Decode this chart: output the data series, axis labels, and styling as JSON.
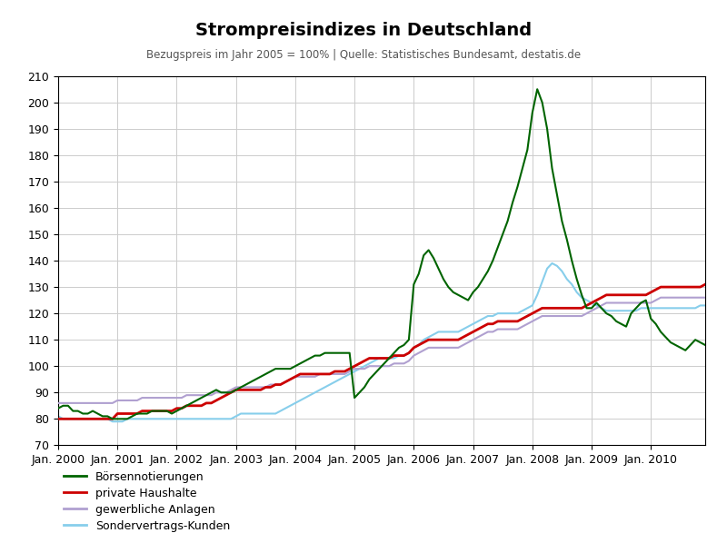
{
  "title": "Strompreisindizes in Deutschland",
  "subtitle": "Bezugspreis im Jahr 2005 = 100% | Quelle: Statistisches Bundesamt, destatis.de",
  "ylim": [
    70,
    210
  ],
  "yticks": [
    70,
    80,
    90,
    100,
    110,
    120,
    130,
    140,
    150,
    160,
    170,
    180,
    190,
    200,
    210
  ],
  "colors": {
    "boerse": "#006400",
    "haushalte": "#cc0000",
    "gewerbe": "#b0a0d0",
    "sonder": "#87ceeb"
  },
  "legend_labels": [
    "Börsennotierungen",
    "private Haushalte",
    "gewerbliche Anlagen",
    "Sondervertrags-Kunden"
  ],
  "background": "#ffffff",
  "grid_color": "#cccccc",
  "x_tick_labels": [
    "Jan. 2000",
    "Jan. 2001",
    "Jan. 2002",
    "Jan. 2003",
    "Jan. 2004",
    "Jan. 2005",
    "Jan. 2006",
    "Jan. 2007",
    "Jan. 2008",
    "Jan. 2009",
    "Jan. 2010"
  ],
  "x_tick_positions": [
    0,
    12,
    24,
    36,
    48,
    60,
    72,
    84,
    96,
    108,
    120
  ],
  "boerse": [
    84,
    85,
    85,
    83,
    83,
    82,
    82,
    83,
    82,
    81,
    81,
    80,
    80,
    80,
    80,
    81,
    82,
    82,
    82,
    83,
    83,
    83,
    83,
    82,
    83,
    84,
    85,
    86,
    87,
    88,
    89,
    90,
    91,
    90,
    90,
    90,
    91,
    92,
    93,
    94,
    95,
    96,
    97,
    98,
    99,
    99,
    99,
    99,
    100,
    101,
    102,
    103,
    104,
    104,
    105,
    105,
    105,
    105,
    105,
    105,
    88,
    90,
    92,
    95,
    97,
    99,
    101,
    103,
    105,
    107,
    108,
    110,
    131,
    135,
    142,
    144,
    141,
    137,
    133,
    130,
    128,
    127,
    126,
    125,
    128,
    130,
    133,
    136,
    140,
    145,
    150,
    155,
    162,
    168,
    175,
    182,
    196,
    205,
    200,
    190,
    175,
    165,
    155,
    148,
    140,
    133,
    127,
    122,
    122,
    124,
    122,
    120,
    119,
    117,
    116,
    115,
    120,
    122,
    124,
    125,
    118,
    116,
    113,
    111,
    109,
    108,
    107,
    106,
    108,
    110,
    109,
    108
  ],
  "haushalte": [
    80,
    80,
    80,
    80,
    80,
    80,
    80,
    80,
    80,
    80,
    80,
    80,
    82,
    82,
    82,
    82,
    82,
    83,
    83,
    83,
    83,
    83,
    83,
    83,
    84,
    84,
    85,
    85,
    85,
    85,
    86,
    86,
    87,
    88,
    89,
    90,
    91,
    91,
    91,
    91,
    91,
    91,
    92,
    92,
    93,
    93,
    94,
    95,
    96,
    97,
    97,
    97,
    97,
    97,
    97,
    97,
    98,
    98,
    98,
    99,
    100,
    101,
    102,
    103,
    103,
    103,
    103,
    103,
    104,
    104,
    104,
    105,
    107,
    108,
    109,
    110,
    110,
    110,
    110,
    110,
    110,
    110,
    111,
    112,
    113,
    114,
    115,
    116,
    116,
    117,
    117,
    117,
    117,
    117,
    118,
    119,
    120,
    121,
    122,
    122,
    122,
    122,
    122,
    122,
    122,
    122,
    122,
    123,
    124,
    125,
    126,
    127,
    127,
    127,
    127,
    127,
    127,
    127,
    127,
    127,
    128,
    129,
    130,
    130,
    130,
    130,
    130,
    130,
    130,
    130,
    130,
    131
  ],
  "gewerbe": [
    86,
    86,
    86,
    86,
    86,
    86,
    86,
    86,
    86,
    86,
    86,
    86,
    87,
    87,
    87,
    87,
    87,
    88,
    88,
    88,
    88,
    88,
    88,
    88,
    88,
    88,
    89,
    89,
    89,
    89,
    89,
    89,
    90,
    90,
    90,
    91,
    92,
    92,
    92,
    92,
    92,
    92,
    92,
    93,
    93,
    93,
    94,
    95,
    96,
    96,
    96,
    96,
    96,
    97,
    97,
    97,
    97,
    97,
    97,
    98,
    99,
    99,
    99,
    100,
    100,
    100,
    100,
    100,
    101,
    101,
    101,
    102,
    104,
    105,
    106,
    107,
    107,
    107,
    107,
    107,
    107,
    107,
    108,
    109,
    110,
    111,
    112,
    113,
    113,
    114,
    114,
    114,
    114,
    114,
    115,
    116,
    117,
    118,
    119,
    119,
    119,
    119,
    119,
    119,
    119,
    119,
    119,
    120,
    121,
    122,
    123,
    124,
    124,
    124,
    124,
    124,
    124,
    124,
    124,
    124,
    124,
    125,
    126,
    126,
    126,
    126,
    126,
    126,
    126,
    126,
    126,
    126
  ],
  "sonder": [
    81,
    80,
    80,
    80,
    80,
    80,
    80,
    80,
    80,
    80,
    80,
    79,
    79,
    79,
    80,
    80,
    80,
    80,
    80,
    80,
    80,
    80,
    80,
    80,
    80,
    80,
    80,
    80,
    80,
    80,
    80,
    80,
    80,
    80,
    80,
    80,
    81,
    82,
    82,
    82,
    82,
    82,
    82,
    82,
    82,
    83,
    84,
    85,
    86,
    87,
    88,
    89,
    90,
    91,
    92,
    93,
    94,
    95,
    96,
    97,
    98,
    99,
    100,
    101,
    102,
    103,
    103,
    103,
    103,
    104,
    104,
    105,
    107,
    108,
    110,
    111,
    112,
    113,
    113,
    113,
    113,
    113,
    114,
    115,
    116,
    117,
    118,
    119,
    119,
    120,
    120,
    120,
    120,
    120,
    121,
    122,
    123,
    127,
    132,
    137,
    139,
    138,
    136,
    133,
    131,
    128,
    126,
    125,
    124,
    123,
    122,
    121,
    121,
    121,
    121,
    121,
    121,
    121,
    122,
    122,
    122,
    122,
    122,
    122,
    122,
    122,
    122,
    122,
    122,
    122,
    123,
    123
  ]
}
